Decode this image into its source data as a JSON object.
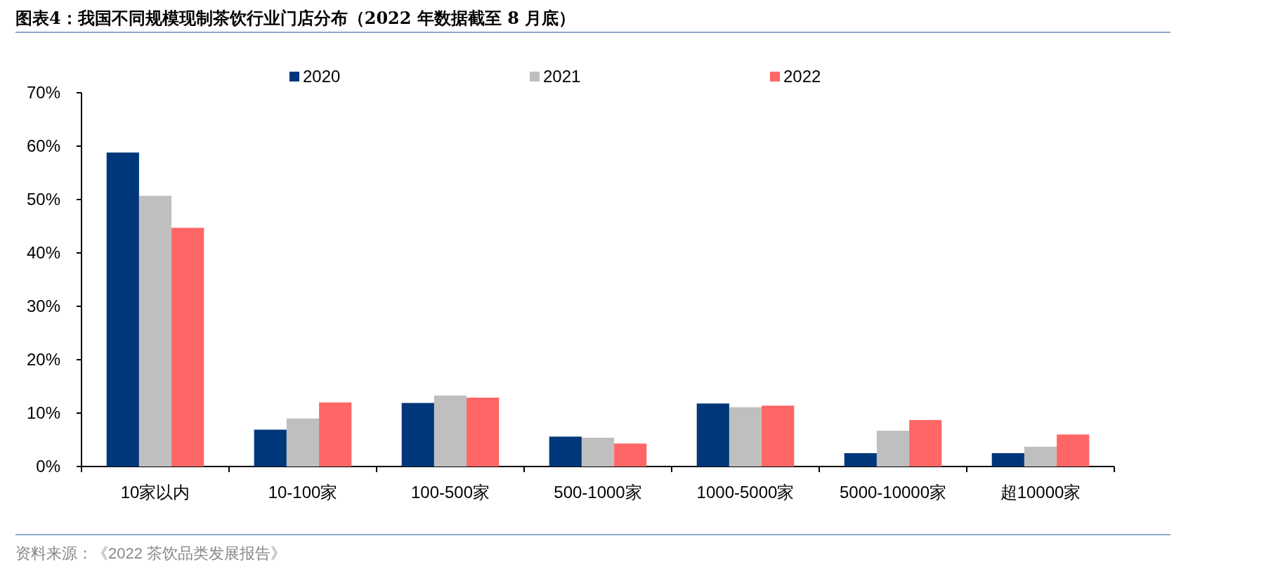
{
  "chart_data": {
    "type": "bar",
    "title": "图表4：我国不同规模现制茶饮行业门店分布（2022 年数据截至 8 月底）",
    "annotations": [
      "资料来源：《2022 茶饮品类发展报告》"
    ],
    "categories": [
      "10家以内",
      "10-100家",
      "100-500家",
      "500-1000家",
      "1000-5000家",
      "5000-10000家",
      "超10000家"
    ],
    "series": [
      {
        "name": "2020",
        "color": "#00377a",
        "values": [
          58.8,
          6.9,
          11.9,
          5.6,
          11.8,
          2.5,
          2.5
        ]
      },
      {
        "name": "2021",
        "color": "#bfbfbf",
        "values": [
          50.7,
          9.0,
          13.3,
          5.4,
          11.1,
          6.7,
          3.7
        ]
      },
      {
        "name": "2022",
        "color": "#ff6666",
        "values": [
          44.7,
          12.0,
          12.9,
          4.3,
          11.4,
          8.7,
          6.0
        ]
      }
    ],
    "ylim": [
      0,
      70
    ],
    "yticks": [
      {
        "value": 0,
        "label": "0%"
      },
      {
        "value": 10,
        "label": "10%"
      },
      {
        "value": 20,
        "label": "20%"
      },
      {
        "value": 30,
        "label": "30%"
      },
      {
        "value": 40,
        "label": "40%"
      },
      {
        "value": 50,
        "label": "50%"
      },
      {
        "value": 60,
        "label": "60%"
      },
      {
        "value": 70,
        "label": "70%"
      }
    ],
    "legend": "top"
  }
}
